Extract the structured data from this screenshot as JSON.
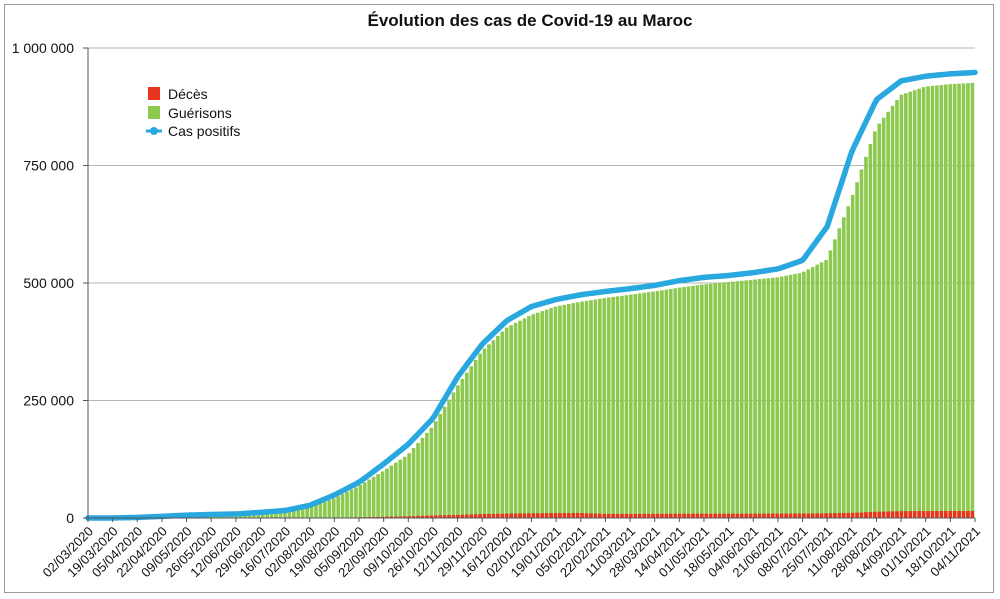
{
  "chart_data": {
    "type": "bar",
    "title": "Évolution des cas de Covid-19 au Maroc",
    "xlabel": "",
    "ylabel": "",
    "ylim": [
      0,
      1000000
    ],
    "y_ticks": [
      0,
      250000,
      500000,
      750000,
      1000000
    ],
    "y_tick_labels": [
      "0",
      "250 000",
      "500 000",
      "750 000",
      "1 000 000"
    ],
    "grid": true,
    "legend_position": "top-left",
    "categories": [
      "02/03/2020",
      "19/03/2020",
      "05/04/2020",
      "22/04/2020",
      "09/05/2020",
      "26/05/2020",
      "12/06/2020",
      "29/06/2020",
      "16/07/2020",
      "02/08/2020",
      "19/08/2020",
      "05/09/2020",
      "22/09/2020",
      "09/10/2020",
      "26/10/2020",
      "12/11/2020",
      "29/11/2020",
      "16/12/2020",
      "02/01/2021",
      "19/01/2021",
      "05/02/2021",
      "22/02/2021",
      "11/03/2021",
      "28/03/2021",
      "14/04/2021",
      "01/05/2021",
      "18/05/2021",
      "04/06/2021",
      "21/06/2021",
      "08/07/2021",
      "25/07/2021",
      "11/08/2021",
      "28/08/2021",
      "14/09/2021",
      "01/10/2021",
      "18/10/2021",
      "04/11/2021"
    ],
    "series": [
      {
        "name": "Décès",
        "kind": "bar",
        "color": "#e8341c",
        "values": [
          0,
          2,
          100,
          170,
          190,
          200,
          210,
          230,
          260,
          400,
          850,
          1500,
          2500,
          3700,
          5300,
          6700,
          8200,
          9400,
          10000,
          10400,
          10700,
          8650,
          8800,
          8900,
          9050,
          9150,
          9200,
          9250,
          9400,
          9500,
          9900,
          11000,
          13200,
          14500,
          14850,
          14900,
          14950
        ]
      },
      {
        "name": "Guérisons",
        "kind": "bar",
        "color": "#8dc94f",
        "values": [
          0,
          0,
          50,
          600,
          4000,
          5500,
          7000,
          8500,
          12000,
          22000,
          42000,
          68000,
          100000,
          135000,
          195000,
          280000,
          355000,
          405000,
          432000,
          450000,
          460000,
          468000,
          475000,
          482000,
          490000,
          497000,
          502000,
          507000,
          512000,
          522000,
          550000,
          680000,
          830000,
          900000,
          918000,
          923000,
          926000
        ]
      },
      {
        "name": "Cas positifs",
        "kind": "line",
        "color": "#29a8e0",
        "values": [
          0,
          50,
          1200,
          3500,
          6000,
          7500,
          8500,
          12000,
          16000,
          27000,
          49000,
          76000,
          115000,
          157000,
          212000,
          300000,
          370000,
          420000,
          450000,
          465000,
          475000,
          482000,
          488000,
          495000,
          505000,
          512000,
          516000,
          522000,
          530000,
          548000,
          620000,
          780000,
          890000,
          930000,
          940000,
          945000,
          948000
        ]
      }
    ]
  }
}
